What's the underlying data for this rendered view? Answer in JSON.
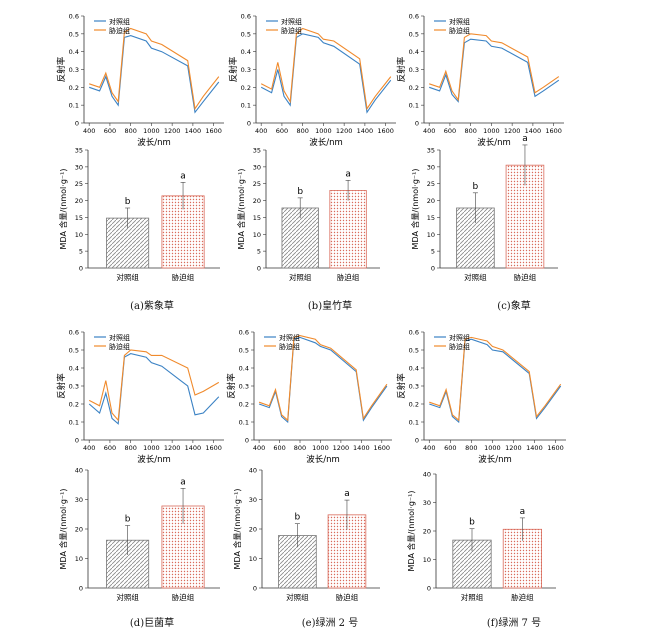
{
  "legend": {
    "control": "对照组",
    "stress": "胁迫组"
  },
  "colors": {
    "control": "#3b82c4",
    "stress": "#f08a2c",
    "bar_control": "#777777",
    "bar_stress": "#d96b5b"
  },
  "spectra_axes": {
    "ylabel": "反射率",
    "xlabel": "波长/nm",
    "x_ticks": [
      400,
      600,
      800,
      1000,
      1200,
      1400,
      1600
    ],
    "y_ticks": [
      0,
      0.1,
      0.2,
      0.3,
      0.4,
      0.5,
      0.6
    ]
  },
  "bar_axes": {
    "ylabel": "MDA 含量/(nmol·g⁻¹)",
    "categories": [
      "对照组",
      "胁迫组"
    ],
    "ticks_top": [
      0,
      5,
      10,
      15,
      20,
      25,
      30,
      35
    ],
    "ticks_bottom": [
      0,
      10,
      20,
      30,
      40
    ]
  },
  "captions": [
    "(a)紫象草",
    "(b)皇竹草",
    "(c)象草",
    "(d)巨菌草",
    "(e)绿洲 2 号",
    "(f)绿洲 7 号"
  ],
  "chart_data": [
    {
      "type": "line",
      "panel": "a-spectra",
      "xlabel": "波长/nm",
      "ylabel": "反射率",
      "xlim": [
        350,
        1700
      ],
      "ylim": [
        0,
        0.6
      ],
      "x": [
        400,
        500,
        560,
        620,
        680,
        740,
        800,
        950,
        1000,
        1100,
        1350,
        1420,
        1500,
        1650
      ],
      "series": [
        {
          "name": "对照组",
          "values": [
            0.2,
            0.18,
            0.26,
            0.15,
            0.1,
            0.48,
            0.49,
            0.46,
            0.42,
            0.4,
            0.32,
            0.06,
            0.12,
            0.23
          ]
        },
        {
          "name": "胁迫组",
          "values": [
            0.22,
            0.2,
            0.28,
            0.17,
            0.12,
            0.51,
            0.53,
            0.5,
            0.46,
            0.44,
            0.35,
            0.08,
            0.15,
            0.26
          ]
        }
      ]
    },
    {
      "type": "line",
      "panel": "b-spectra",
      "xlabel": "波长/nm",
      "ylabel": "反射率",
      "xlim": [
        350,
        1700
      ],
      "ylim": [
        0,
        0.6
      ],
      "x": [
        400,
        500,
        560,
        620,
        680,
        740,
        800,
        950,
        1000,
        1100,
        1350,
        1420,
        1500,
        1650
      ],
      "series": [
        {
          "name": "对照组",
          "values": [
            0.2,
            0.17,
            0.3,
            0.15,
            0.1,
            0.48,
            0.5,
            0.48,
            0.45,
            0.43,
            0.33,
            0.06,
            0.13,
            0.24
          ]
        },
        {
          "name": "胁迫组",
          "values": [
            0.22,
            0.19,
            0.34,
            0.18,
            0.12,
            0.5,
            0.53,
            0.5,
            0.47,
            0.46,
            0.36,
            0.08,
            0.15,
            0.26
          ]
        }
      ]
    },
    {
      "type": "line",
      "panel": "c-spectra",
      "xlabel": "波长/nm",
      "ylabel": "反射率",
      "xlim": [
        350,
        1700
      ],
      "ylim": [
        0,
        0.6
      ],
      "x": [
        400,
        500,
        560,
        620,
        680,
        740,
        800,
        950,
        1000,
        1100,
        1350,
        1420,
        1500,
        1650
      ],
      "series": [
        {
          "name": "对照组",
          "values": [
            0.2,
            0.18,
            0.27,
            0.16,
            0.12,
            0.45,
            0.47,
            0.46,
            0.43,
            0.42,
            0.34,
            0.15,
            0.18,
            0.24
          ]
        },
        {
          "name": "胁迫组",
          "values": [
            0.22,
            0.2,
            0.29,
            0.18,
            0.13,
            0.48,
            0.5,
            0.49,
            0.46,
            0.45,
            0.37,
            0.17,
            0.2,
            0.26
          ]
        }
      ]
    },
    {
      "type": "line",
      "panel": "d-spectra",
      "xlabel": "波长/nm",
      "ylabel": "反射率",
      "xlim": [
        350,
        1700
      ],
      "ylim": [
        0,
        0.6
      ],
      "x": [
        400,
        500,
        560,
        620,
        680,
        740,
        800,
        950,
        1000,
        1100,
        1350,
        1420,
        1500,
        1650
      ],
      "series": [
        {
          "name": "对照组",
          "values": [
            0.2,
            0.15,
            0.26,
            0.12,
            0.09,
            0.46,
            0.48,
            0.46,
            0.43,
            0.41,
            0.3,
            0.14,
            0.15,
            0.24
          ]
        },
        {
          "name": "胁迫组",
          "values": [
            0.22,
            0.19,
            0.33,
            0.15,
            0.11,
            0.47,
            0.5,
            0.49,
            0.47,
            0.47,
            0.4,
            0.25,
            0.27,
            0.32
          ]
        }
      ]
    },
    {
      "type": "line",
      "panel": "e-spectra",
      "xlabel": "波长/nm",
      "ylabel": "反射率",
      "xlim": [
        350,
        1700
      ],
      "ylim": [
        0,
        0.6
      ],
      "x": [
        400,
        500,
        560,
        620,
        680,
        740,
        800,
        950,
        1000,
        1100,
        1350,
        1420,
        1500,
        1650
      ],
      "series": [
        {
          "name": "对照组",
          "values": [
            0.2,
            0.18,
            0.27,
            0.13,
            0.1,
            0.56,
            0.57,
            0.54,
            0.52,
            0.5,
            0.38,
            0.11,
            0.18,
            0.3
          ]
        },
        {
          "name": "胁迫组",
          "values": [
            0.21,
            0.19,
            0.28,
            0.14,
            0.11,
            0.57,
            0.58,
            0.56,
            0.53,
            0.51,
            0.39,
            0.12,
            0.19,
            0.31
          ]
        }
      ]
    },
    {
      "type": "line",
      "panel": "f-spectra",
      "xlabel": "波长/nm",
      "ylabel": "反射率",
      "xlim": [
        350,
        1700
      ],
      "ylim": [
        0,
        0.6
      ],
      "x": [
        400,
        500,
        560,
        620,
        680,
        740,
        800,
        950,
        1000,
        1100,
        1350,
        1420,
        1500,
        1650
      ],
      "series": [
        {
          "name": "对照组",
          "values": [
            0.2,
            0.18,
            0.27,
            0.13,
            0.1,
            0.55,
            0.56,
            0.53,
            0.5,
            0.49,
            0.37,
            0.12,
            0.18,
            0.3
          ]
        },
        {
          "name": "胁迫组",
          "values": [
            0.21,
            0.19,
            0.28,
            0.14,
            0.11,
            0.56,
            0.57,
            0.55,
            0.52,
            0.5,
            0.38,
            0.13,
            0.19,
            0.31
          ]
        }
      ]
    },
    {
      "type": "bar",
      "panel": "a-mda",
      "ylabel": "MDA 含量/(nmol·g⁻¹)",
      "categories": [
        "对照组",
        "胁迫组"
      ],
      "values": [
        14.8,
        21.4
      ],
      "errors": [
        3.0,
        4.0
      ],
      "letters": [
        "b",
        "a"
      ],
      "ylim": [
        0,
        35
      ]
    },
    {
      "type": "bar",
      "panel": "b-mda",
      "ylabel": "MDA 含量/(nmol·g⁻¹)",
      "categories": [
        "对照组",
        "胁迫组"
      ],
      "values": [
        17.8,
        23.0
      ],
      "errors": [
        3.0,
        3.0
      ],
      "letters": [
        "b",
        "a"
      ],
      "ylim": [
        0,
        35
      ]
    },
    {
      "type": "bar",
      "panel": "c-mda",
      "ylabel": "MDA 含量/(nmol·g⁻¹)",
      "categories": [
        "对照组",
        "胁迫组"
      ],
      "values": [
        17.8,
        30.5
      ],
      "errors": [
        4.5,
        6.0
      ],
      "letters": [
        "b",
        "a"
      ],
      "ylim": [
        0,
        35
      ]
    },
    {
      "type": "bar",
      "panel": "d-mda",
      "ylabel": "MDA 含量/(nmol·g⁻¹)",
      "categories": [
        "对照组",
        "胁迫组"
      ],
      "values": [
        16.2,
        27.8
      ],
      "errors": [
        5.0,
        6.0
      ],
      "letters": [
        "b",
        "a"
      ],
      "ylim": [
        0,
        40
      ]
    },
    {
      "type": "bar",
      "panel": "e-mda",
      "ylabel": "MDA 含量/(nmol·g⁻¹)",
      "categories": [
        "对照组",
        "胁迫组"
      ],
      "values": [
        17.8,
        24.8
      ],
      "errors": [
        4.0,
        5.0
      ],
      "letters": [
        "b",
        "a"
      ],
      "ylim": [
        0,
        40
      ]
    },
    {
      "type": "bar",
      "panel": "f-mda",
      "ylabel": "MDA 含量/(nmol·g⁻¹)",
      "categories": [
        "对照组",
        "胁迫组"
      ],
      "values": [
        16.8,
        20.6
      ],
      "errors": [
        4.0,
        4.0
      ],
      "letters": [
        "b",
        "a"
      ],
      "ylim": [
        0,
        40
      ]
    }
  ]
}
